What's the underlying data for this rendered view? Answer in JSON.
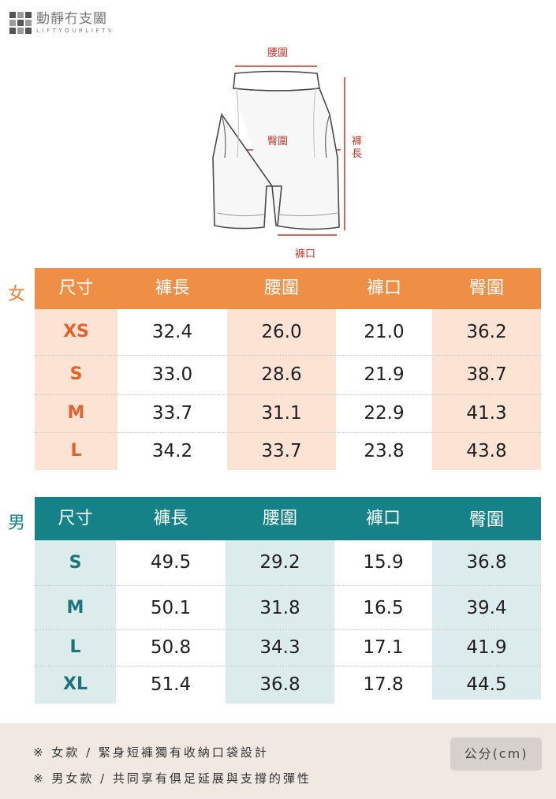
{
  "brand": {
    "name_cn": "動靜冇支闔",
    "name_en": "LIFTYOURLIFTS"
  },
  "diagram": {
    "waist_label": "腰圍",
    "hip_label": "臀圍",
    "length_label": "褲長",
    "hem_label": "褲口"
  },
  "women": {
    "gender_label": "女",
    "headers": [
      "尺寸",
      "褲長",
      "腰圍",
      "褲口",
      "臀圍"
    ],
    "rows": [
      [
        "XS",
        "32.4",
        "26.0",
        "21.0",
        "36.2"
      ],
      [
        "S",
        "33.0",
        "28.6",
        "21.9",
        "38.7"
      ],
      [
        "M",
        "33.7",
        "31.1",
        "22.9",
        "41.3"
      ],
      [
        "L",
        "34.2",
        "33.7",
        "23.8",
        "43.8"
      ]
    ]
  },
  "men": {
    "gender_label": "男",
    "headers": [
      "尺寸",
      "褲長",
      "腰圍",
      "褲口",
      "臀圍"
    ],
    "rows": [
      [
        "S",
        "49.5",
        "29.2",
        "15.9",
        "36.8"
      ],
      [
        "M",
        "50.1",
        "31.8",
        "16.5",
        "39.4"
      ],
      [
        "L",
        "50.8",
        "34.3",
        "17.1",
        "41.9"
      ],
      [
        "XL",
        "51.4",
        "36.8",
        "17.8",
        "44.5"
      ]
    ]
  },
  "footer": {
    "note1": "※ 女款 / 緊身短褲獨有收納口袋設計",
    "note2": "※ 男女款 / 共同享有俱足延展與支撐的彈性",
    "unit_label": "公分(cm)"
  }
}
